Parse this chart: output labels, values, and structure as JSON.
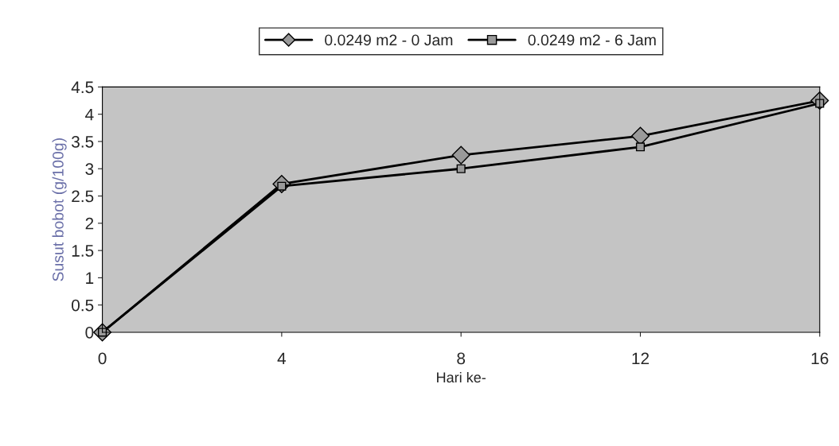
{
  "chart_data": {
    "type": "line",
    "xlabel": "Hari ke-",
    "ylabel": "Susut bobot (g/100g)",
    "x": [
      0,
      4,
      8,
      12,
      16
    ],
    "xlim": [
      0,
      16
    ],
    "xticks": [
      0,
      4,
      8,
      12,
      16
    ],
    "ylim": [
      0,
      4.5
    ],
    "yticks": [
      0,
      0.5,
      1,
      1.5,
      2,
      2.5,
      3,
      3.5,
      4,
      4.5
    ],
    "series": [
      {
        "name": "0.0249 m2 - 0 Jam",
        "color": "#000000",
        "marker": "diamond",
        "values": [
          0,
          2.72,
          3.25,
          3.6,
          4.25
        ]
      },
      {
        "name": "0.0249 m2 - 6 Jam",
        "color": "#000000",
        "marker": "square",
        "values": [
          0,
          2.68,
          3.0,
          3.4,
          4.2
        ]
      }
    ],
    "legend": "top",
    "grid": false,
    "line_style": "solid"
  }
}
